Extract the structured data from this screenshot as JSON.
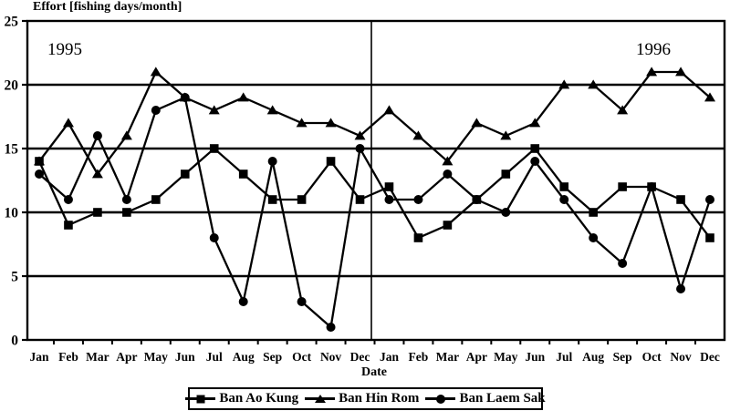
{
  "title": "Effort [fishing days/month]",
  "axis": {
    "xlabel": "Date",
    "year_left": "1995",
    "year_right": "1996"
  },
  "legend": {
    "entries": [
      {
        "label": "Ban Ao Kung",
        "marker": "square"
      },
      {
        "label": "Ban Hin Rom",
        "marker": "triangle"
      },
      {
        "label": "Ban Laem Sak",
        "marker": "circle"
      }
    ]
  },
  "chart_data": {
    "type": "line",
    "title": "Effort [fishing days/month]",
    "xlabel": "Date",
    "ylabel": "Effort [fishing days/month]",
    "categories": [
      "Jan",
      "Feb",
      "Mar",
      "Apr",
      "May",
      "Jun",
      "Jul",
      "Aug",
      "Sep",
      "Oct",
      "Nov",
      "Dec",
      "Jan",
      "Feb",
      "Mar",
      "Apr",
      "May",
      "Jun",
      "Jul",
      "Aug",
      "Sep",
      "Oct",
      "Nov",
      "Dec"
    ],
    "year_annotations": [
      {
        "label": "1995",
        "months": [
          0,
          11
        ]
      },
      {
        "label": "1996",
        "months": [
          12,
          23
        ]
      }
    ],
    "ylim": [
      0,
      25
    ],
    "yticks": [
      0,
      5,
      10,
      15,
      20,
      25
    ],
    "grid": true,
    "legend_position": "bottom",
    "line_color": "#000000",
    "series": [
      {
        "name": "Ban Ao Kung",
        "marker": "square",
        "values": [
          14,
          9,
          10,
          10,
          11,
          13,
          15,
          13,
          11,
          11,
          14,
          11,
          12,
          8,
          9,
          11,
          13,
          15,
          12,
          10,
          12,
          12,
          11,
          8
        ]
      },
      {
        "name": "Ban Hin Rom",
        "marker": "triangle",
        "values": [
          14,
          17,
          13,
          16,
          21,
          19,
          18,
          19,
          18,
          17,
          17,
          16,
          18,
          16,
          14,
          17,
          16,
          17,
          20,
          20,
          18,
          21,
          21,
          19
        ]
      },
      {
        "name": "Ban Laem Sak",
        "marker": "circle",
        "values": [
          13,
          11,
          16,
          11,
          18,
          19,
          8,
          3,
          14,
          3,
          1,
          15,
          11,
          11,
          13,
          11,
          10,
          14,
          11,
          8,
          6,
          12,
          4,
          11
        ]
      }
    ]
  }
}
